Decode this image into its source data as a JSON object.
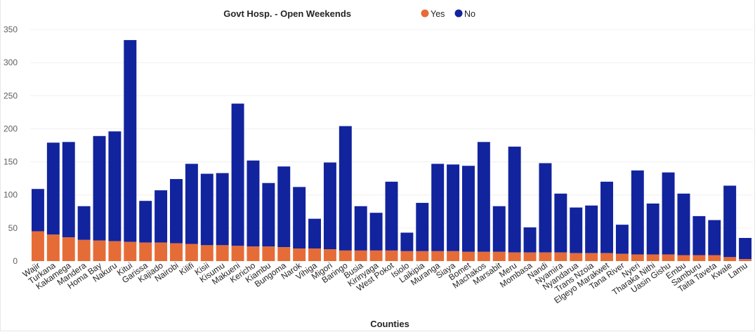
{
  "chart_data": {
    "type": "bar",
    "stacked": true,
    "title": "Govt Hosp. - Open Weekends",
    "xlabel": "Counties",
    "ylabel": "",
    "ylim": [
      0,
      350
    ],
    "yticks": [
      0,
      50,
      100,
      150,
      200,
      250,
      300,
      350
    ],
    "grid": true,
    "legend_position": "top",
    "categories": [
      "Wajir",
      "Turkana",
      "Kakamega",
      "Mandera",
      "Homa Bay",
      "Nakuru",
      "Kitui",
      "Garissa",
      "Kajiado",
      "Nairobi",
      "Kilifi",
      "Kisii",
      "Kisumu",
      "Makueni",
      "Kericho",
      "Kiambu",
      "Bungoma",
      "Narok",
      "Vihiga",
      "Migori",
      "Baringo",
      "Busia",
      "Kirinyaga",
      "West Pokot",
      "Isiolo",
      "Laikipia",
      "Muranga",
      "Siaya",
      "Bomet",
      "Machakos",
      "Marsabit",
      "Meru",
      "Mombasa",
      "Nandi",
      "Nyamira",
      "Nyandarua",
      "Trans Nzoia",
      "Elgeyo Marakwet",
      "Tana River",
      "Nyeri",
      "Tharaka Nithi",
      "Uasin Gishu",
      "Embu",
      "Samburu",
      "Taita Taveta",
      "Kwale",
      "Lamu"
    ],
    "series": [
      {
        "name": "Yes",
        "color": "#e66c37",
        "values": [
          45,
          40,
          36,
          32,
          31,
          30,
          29,
          28,
          28,
          27,
          26,
          24,
          24,
          23,
          22,
          22,
          21,
          19,
          19,
          18,
          16,
          16,
          16,
          16,
          15,
          15,
          15,
          15,
          14,
          14,
          14,
          13,
          13,
          13,
          13,
          12,
          12,
          12,
          11,
          10,
          10,
          10,
          9,
          9,
          9,
          6,
          3
        ]
      },
      {
        "name": "No",
        "color": "#12239e",
        "values": [
          64,
          139,
          144,
          51,
          158,
          166,
          305,
          63,
          79,
          97,
          121,
          108,
          109,
          215,
          130,
          96,
          122,
          93,
          45,
          131,
          188,
          67,
          57,
          104,
          28,
          73,
          132,
          131,
          130,
          166,
          69,
          160,
          38,
          135,
          89,
          69,
          72,
          108,
          44,
          127,
          77,
          124,
          93,
          59,
          53,
          108,
          32
        ]
      }
    ]
  }
}
